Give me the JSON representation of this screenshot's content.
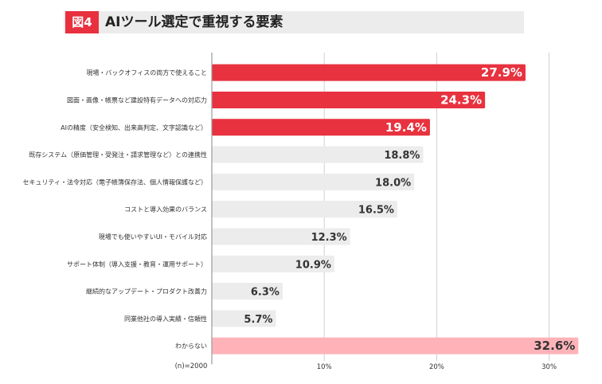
{
  "header": {
    "figure_label": "図4",
    "title": "AIツール選定で重視する要素"
  },
  "chart_data": {
    "type": "bar",
    "orientation": "horizontal",
    "title": "AIツール選定で重視する要素",
    "categories": [
      "現場・バックオフィスの両方で使えること",
      "図面・画像・帳票など建設特有データへの対応力",
      "AIの精度（安全検知、出来高判定、文字認識など）",
      "既存システム（原価管理・受発注・請求管理など）との連携性",
      "セキュリティ・法令対応（電子帳簿保存法、個人情報保護など）",
      "コストと導入効果のバランス",
      "現場でも使いやすいUI・モバイル対応",
      "サポート体制（導入支援・教育・運用サポート）",
      "継続的なアップデート・プロダクト改善力",
      "同業他社の導入実績・信頼性",
      "わからない"
    ],
    "values": [
      27.9,
      24.3,
      19.4,
      18.8,
      18.0,
      16.5,
      12.3,
      10.9,
      6.3,
      5.7,
      32.6
    ],
    "value_labels": [
      "27.9%",
      "24.3%",
      "19.4%",
      "18.8%",
      "18.0%",
      "16.5%",
      "12.3%",
      "10.9%",
      "6.3%",
      "5.7%",
      "32.6%"
    ],
    "highlight": [
      "top",
      "top",
      "top",
      "normal",
      "normal",
      "normal",
      "normal",
      "normal",
      "normal",
      "normal",
      "unknown"
    ],
    "colors": {
      "top": "#e8323f",
      "normal": "#ececec",
      "unknown": "#ffb3b9"
    },
    "xlim": [
      0,
      33
    ],
    "xticks": [
      10,
      20,
      30
    ],
    "xtick_labels": [
      "10%",
      "20%",
      "30%"
    ],
    "sample_note": "(n)=2000",
    "grid": true,
    "xlabel": "",
    "ylabel": ""
  }
}
